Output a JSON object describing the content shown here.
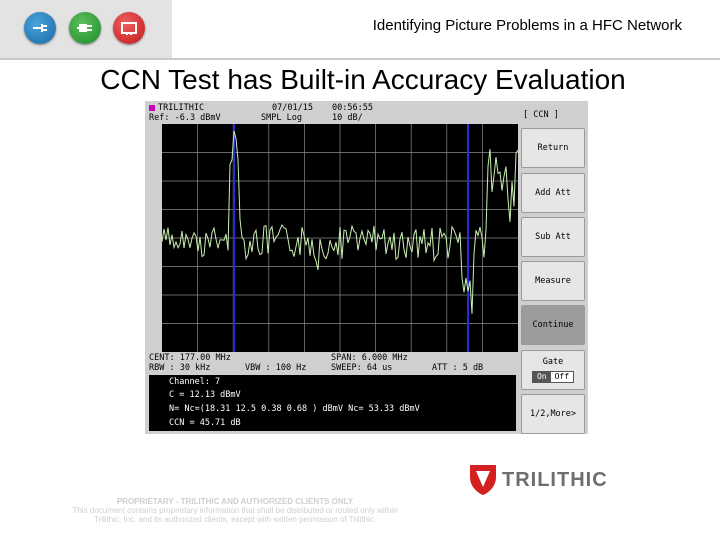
{
  "header": {
    "title": "Identifying Picture Problems in a HFC Network",
    "icons": [
      "network-icon",
      "plug-icon",
      "tv-icon"
    ]
  },
  "slide": {
    "title": "CCN Test has Built-in Accuracy Evaluation"
  },
  "instrument": {
    "brand": "TRILITHIC",
    "date": "07/01/15",
    "time": "00:56:55",
    "ref": "Ref: -6.3 dBmV",
    "smpl": "SMPL  Log",
    "scale": "10 dB/",
    "cent": "CENT: 177.00 MHz",
    "span": "SPAN: 6.000 MHz",
    "rbw": "RBW : 30 kHz",
    "vbw": "VBW : 100 Hz",
    "sweep": "SWEEP: 64 us",
    "att": "ATT : 5 dB",
    "results": {
      "channel": "Channel: 7",
      "c": "C  =   12.13 dBmV",
      "n_line": "N= Nc=(18.31  12.5   0.38   0.68  ) dBmV   Nc= 53.33 dBmV",
      "ccn": "CCN =   45.71 dB"
    },
    "softkeys": {
      "mode": "[ CCN ]",
      "return": "Return",
      "add_att": "Add Att",
      "sub_att": "Sub Att",
      "measure": "Measure",
      "continue": "Continue",
      "gate": "Gate",
      "gate_on": "On",
      "gate_off": "Off",
      "more": "1/2,More>"
    }
  },
  "footer": {
    "notice_title": "PROPRIETARY - TRILITHIC AND AUTHORIZED CLIENTS ONLY",
    "notice_line1": "This document contains proprietary information that shall be distributed or routed only within",
    "notice_line2": "Trilithic, Inc. and its authorized clients, except with written permission of Trilithic.",
    "brand": "TRILITHIC"
  },
  "colors": {
    "trace": "#c8f0b0",
    "marker_lines": "#2a2ad8",
    "brand_red": "#d42020",
    "grid": "#8a8a8a"
  }
}
